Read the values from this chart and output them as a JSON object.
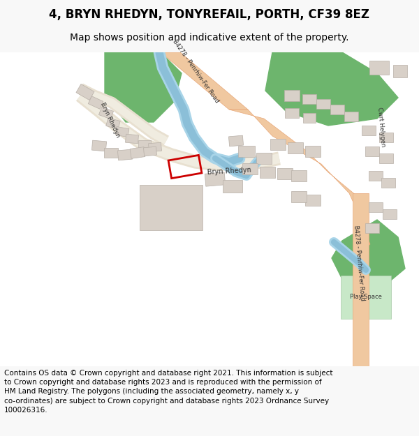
{
  "title": "4, BRYN RHEDYN, TONYREFAIL, PORTH, CF39 8EZ",
  "subtitle": "Map shows position and indicative extent of the property.",
  "footer_wrapped": "Contains OS data © Crown copyright and database right 2021. This information is subject\nto Crown copyright and database rights 2023 and is reproduced with the permission of\nHM Land Registry. The polygons (including the associated geometry, namely x, y\nco-ordinates) are subject to Crown copyright and database rights 2023 Ordnance Survey\n100026316.",
  "bg_color": "#f8f8f8",
  "map_bg": "#ffffff",
  "road_color": "#f0c8a0",
  "road_edge": "#e8a87a",
  "water_color": "#a8d4e8",
  "water_inner": "#8bbfd8",
  "green_color": "#6db56d",
  "building_color": "#d8d0c8",
  "building_edge": "#b8b0a8",
  "property_color": "#cc0000",
  "playspace_color": "#c8e8c8",
  "playspace_edge": "#a8c8a8",
  "local_road_outer": "#e8e0d0",
  "local_road_inner": "#f0ece0",
  "title_fontsize": 12,
  "subtitle_fontsize": 10,
  "footer_fontsize": 7.5,
  "label_color": "#333333"
}
